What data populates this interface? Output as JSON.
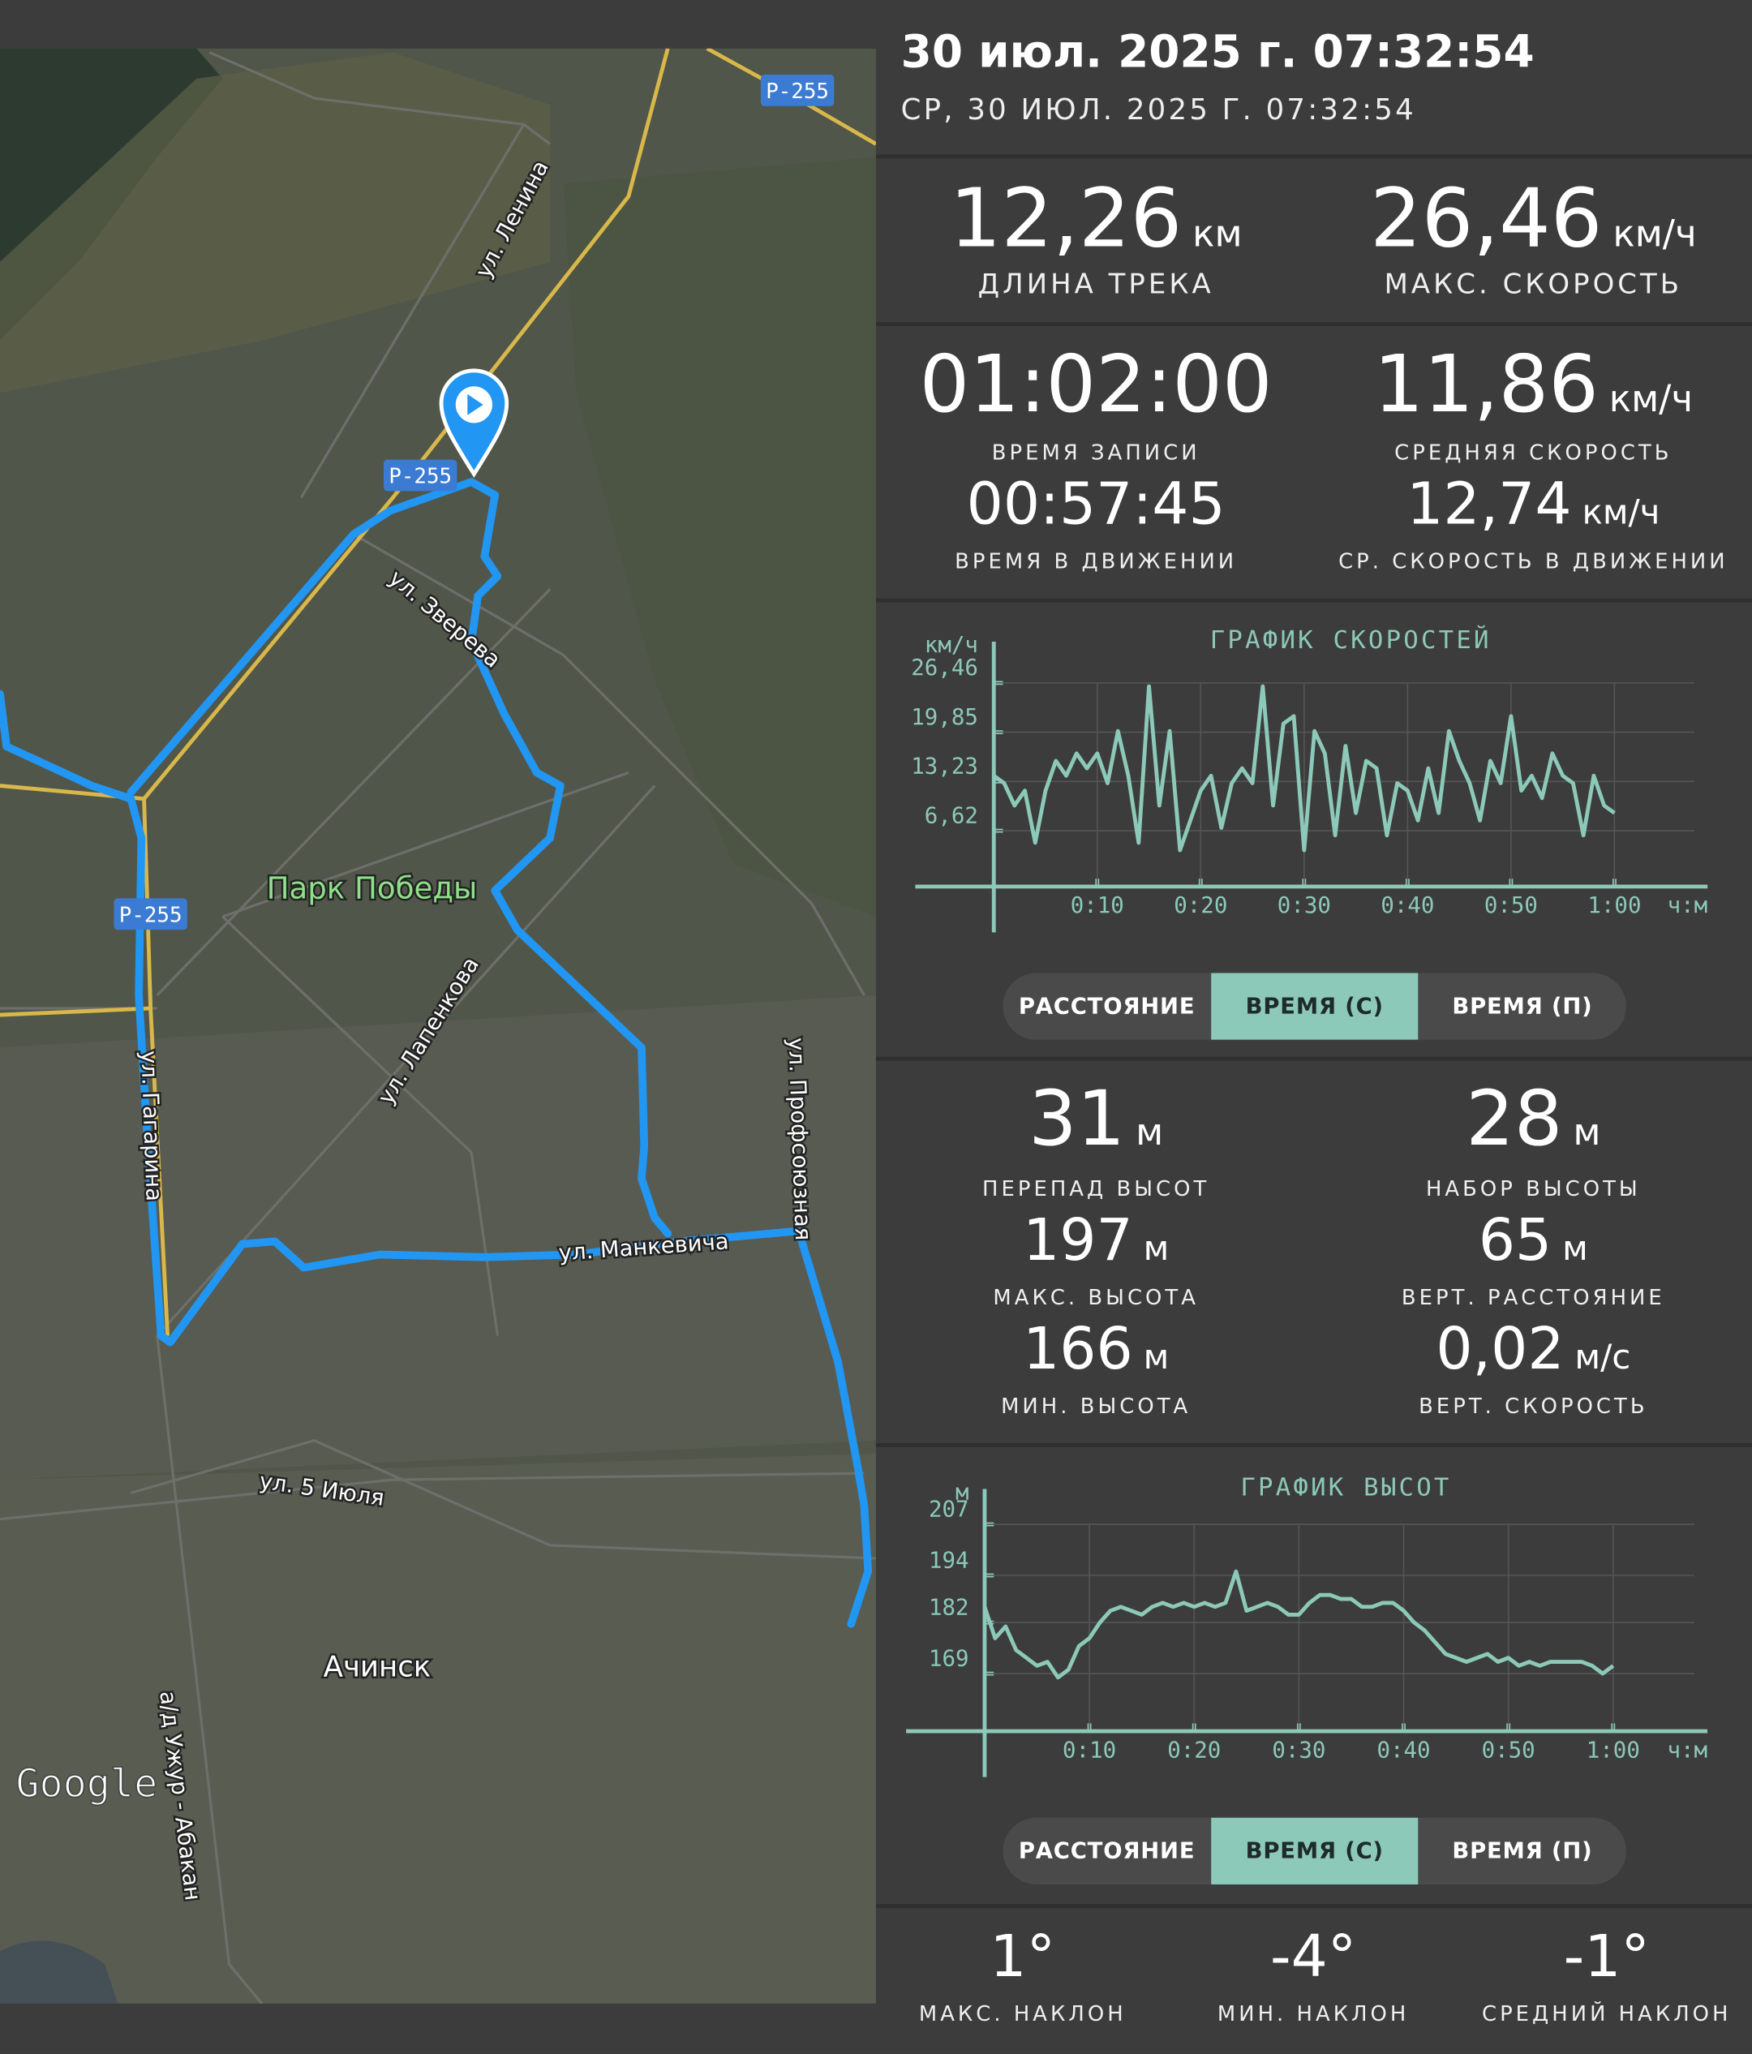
{
  "header": {
    "title": "30 июл. 2025 г. 07:32:54",
    "subtitle": "СР, 30 ИЮЛ. 2025 Г. 07:32:54"
  },
  "map": {
    "labels": [
      "Р-255",
      "Р-255",
      "Р-255",
      "ул. Ленина",
      "ул. Зверева",
      "Парк Победы",
      "ул. Лапенкова",
      "ул. Гагарина",
      "ул. Профсоюзная",
      "ул. Манкевича",
      "ул. 5 Июля",
      "Ачинск",
      "а/д Ужур - Абакан"
    ],
    "attribution": "Google"
  },
  "track_stats": [
    {
      "value": "12,26",
      "unit": "км",
      "label": "ДЛИНА ТРЕКА"
    },
    {
      "value": "26,46",
      "unit": "км/ч",
      "label": "МАКС. СКОРОСТЬ"
    }
  ],
  "time_stats": [
    {
      "value": "01:02:00",
      "label": "ВРЕМЯ ЗАПИСИ"
    },
    {
      "value": "11,86",
      "unit": "км/ч",
      "label": "СРЕДНЯЯ СКОРОСТЬ"
    },
    {
      "value": "00:57:45",
      "label": "ВРЕМЯ В ДВИЖЕНИИ"
    },
    {
      "value": "12,74",
      "unit": "км/ч",
      "label": "СР. СКОРОСТЬ В ДВИЖЕНИИ"
    }
  ],
  "speed_chart": {
    "type": "line",
    "title": "ГРАФИК СКОРОСТЕЙ",
    "y_unit": "км/ч",
    "x_unit": "ч:м",
    "color": "#8cc9b8",
    "grid": true,
    "x": [
      0,
      1,
      2,
      3,
      4,
      5,
      6,
      7,
      8,
      9,
      10,
      11,
      12,
      13,
      14,
      15,
      16,
      17,
      18,
      19,
      20,
      21,
      22,
      23,
      24,
      25,
      26,
      27,
      28,
      29,
      30,
      31,
      32,
      33,
      34,
      35,
      36,
      37,
      38,
      39,
      40,
      41,
      42,
      43,
      44,
      45,
      46,
      47,
      48,
      49,
      50,
      51,
      52,
      53,
      54,
      55,
      56,
      57,
      58,
      59,
      60
    ],
    "values": [
      14,
      13,
      10,
      12,
      5,
      12,
      16,
      14,
      17,
      15,
      17,
      13,
      20,
      14,
      5,
      26,
      10,
      20,
      4,
      8,
      12,
      14,
      7,
      13,
      15,
      13,
      26,
      10,
      21,
      22,
      4,
      20,
      17,
      6,
      18,
      9,
      16,
      15,
      6,
      13,
      12,
      8,
      15,
      9,
      20,
      16,
      13,
      8,
      16,
      13,
      22,
      12,
      14,
      11,
      17,
      14,
      13,
      6,
      14,
      10,
      9
    ],
    "xlim": [
      0,
      69
    ],
    "ylim": [
      0,
      32
    ],
    "xticks": [
      {
        "value": 10,
        "label": "0:10"
      },
      {
        "value": 20,
        "label": "0:20"
      },
      {
        "value": 30,
        "label": "0:30"
      },
      {
        "value": 40,
        "label": "0:40"
      },
      {
        "value": 50,
        "label": "0:50"
      },
      {
        "value": 60,
        "label": "1:00"
      }
    ],
    "yticks": [
      {
        "value": 6.62,
        "label": "6,62"
      },
      {
        "value": 13.23,
        "label": "13,23"
      },
      {
        "value": 19.85,
        "label": "19,85"
      },
      {
        "value": 26.46,
        "label": "26,46"
      }
    ]
  },
  "speed_toggle": {
    "options": [
      "РАССТОЯНИЕ",
      "ВРЕМЯ (С)",
      "ВРЕМЯ (П)"
    ],
    "selected": 1
  },
  "elevation_stats": [
    {
      "value": "31",
      "unit": "м",
      "label": "ПЕРЕПАД ВЫСОТ"
    },
    {
      "value": "28",
      "unit": "м",
      "label": "НАБОР ВЫСОТЫ"
    },
    {
      "value": "197",
      "unit": "м",
      "label": "МАКС. ВЫСОТА"
    },
    {
      "value": "65",
      "unit": "м",
      "label": "ВЕРТ. РАССТОЯНИЕ"
    },
    {
      "value": "166",
      "unit": "м",
      "label": "МИН. ВЫСОТА"
    },
    {
      "value": "0,02",
      "unit": "м/с",
      "label": "ВЕРТ. СКОРОСТЬ"
    }
  ],
  "elevation_chart": {
    "type": "line",
    "title": "ГРАФИК ВЫСОТ",
    "y_unit": "м",
    "x_unit": "ч:м",
    "color": "#8cc9b8",
    "grid": true,
    "x": [
      0,
      1,
      2,
      3,
      4,
      5,
      6,
      7,
      8,
      9,
      10,
      11,
      12,
      13,
      14,
      15,
      16,
      17,
      18,
      19,
      20,
      21,
      22,
      23,
      24,
      25,
      26,
      27,
      28,
      29,
      30,
      31,
      32,
      33,
      34,
      35,
      36,
      37,
      38,
      39,
      40,
      41,
      42,
      43,
      44,
      45,
      46,
      47,
      48,
      49,
      50,
      51,
      52,
      53,
      54,
      55,
      56,
      57,
      58,
      59,
      60
    ],
    "values": [
      186,
      178,
      181,
      175,
      173,
      171,
      172,
      168,
      170,
      176,
      178,
      182,
      185,
      186,
      185,
      184,
      186,
      187,
      186,
      187,
      186,
      187,
      186,
      187,
      195,
      185,
      186,
      187,
      186,
      184,
      184,
      187,
      189,
      189,
      188,
      188,
      186,
      186,
      187,
      187,
      185,
      182,
      180,
      177,
      174,
      173,
      172,
      173,
      174,
      172,
      173,
      171,
      172,
      171,
      172,
      172,
      172,
      172,
      171,
      169,
      171
    ],
    "xlim": [
      0,
      69
    ],
    "ylim": [
      154,
      216
    ],
    "xticks": [
      {
        "value": 10,
        "label": "0:10"
      },
      {
        "value": 20,
        "label": "0:20"
      },
      {
        "value": 30,
        "label": "0:30"
      },
      {
        "value": 40,
        "label": "0:40"
      },
      {
        "value": 50,
        "label": "0:50"
      },
      {
        "value": 60,
        "label": "1:00"
      }
    ],
    "yticks": [
      169,
      182,
      194,
      207
    ]
  },
  "elevation_toggle": {
    "options": [
      "РАССТОЯНИЕ",
      "ВРЕМЯ (С)",
      "ВРЕМЯ (П)"
    ],
    "selected": 1
  },
  "slope_stats": [
    {
      "value": "1°",
      "label": "МАКС. НАКЛОН"
    },
    {
      "value": "-4°",
      "label": "МИН. НАКЛОН"
    },
    {
      "value": "-1°",
      "label": "СРЕДНИЙ НАКЛОН"
    }
  ]
}
